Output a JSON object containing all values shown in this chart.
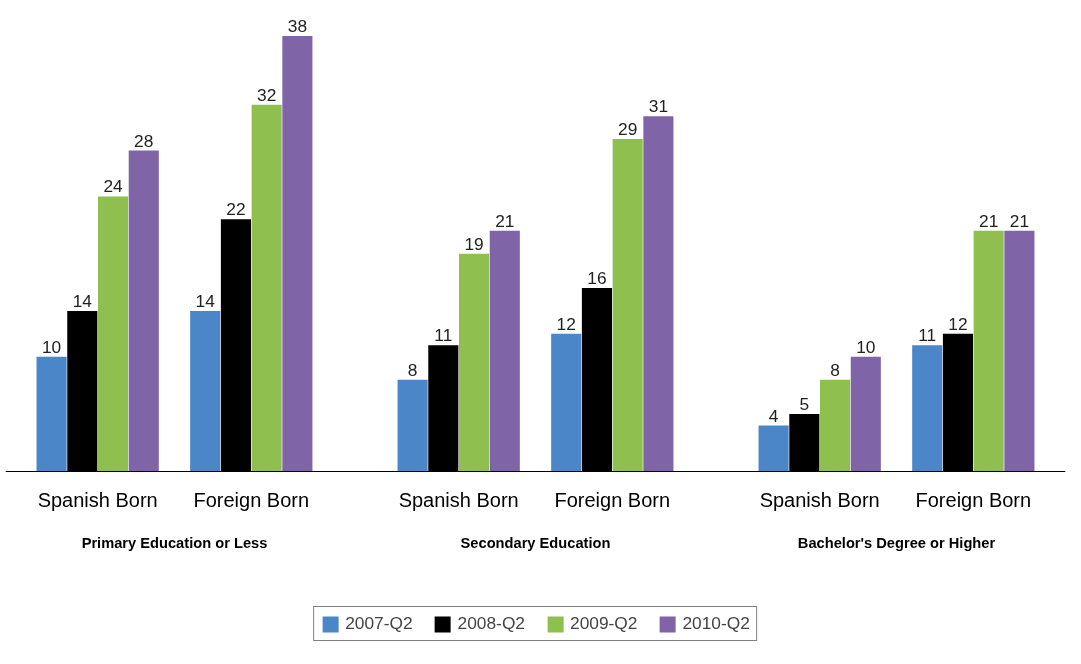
{
  "chart_data": {
    "type": "bar",
    "categories": [
      "Spanish Born",
      "Foreign Born",
      "Spanish Born",
      "Foreign Born",
      "Spanish Born",
      "Foreign Born"
    ],
    "series": [
      {
        "name": "2007-Q2",
        "color": "#4a86c8",
        "values": [
          10,
          14,
          8,
          12,
          4,
          11
        ]
      },
      {
        "name": "2008-Q2",
        "color": "#000000",
        "values": [
          14,
          22,
          11,
          16,
          5,
          12
        ]
      },
      {
        "name": "2009-Q2",
        "color": "#8fc04f",
        "values": [
          24,
          32,
          19,
          29,
          8,
          21
        ]
      },
      {
        "name": "2010-Q2",
        "color": "#8064a8",
        "values": [
          28,
          38,
          21,
          31,
          10,
          21
        ]
      }
    ],
    "annotations": [
      "Primary Education or Less",
      "Secondary Education",
      "Bachelor's Degree or Higher"
    ],
    "data_labels": true,
    "legend": "bottom",
    "grid": false
  }
}
